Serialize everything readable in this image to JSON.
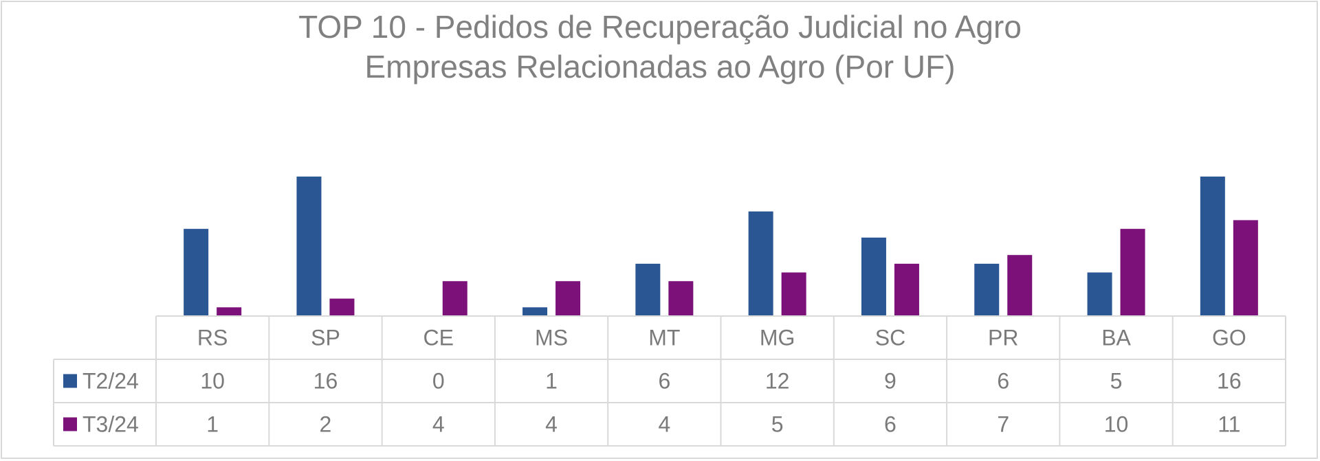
{
  "chart_data": {
    "type": "bar",
    "title": "TOP 10 - Pedidos de Recuperação Judicial no Agro",
    "subtitle": "Empresas Relacionadas ao Agro (Por UF)",
    "categories": [
      "RS",
      "SP",
      "CE",
      "MS",
      "MT",
      "MG",
      "SC",
      "PR",
      "BA",
      "GO"
    ],
    "series": [
      {
        "name": "T2/24",
        "color": "#2b5694",
        "values": [
          10,
          16,
          0,
          1,
          6,
          12,
          9,
          6,
          5,
          16
        ]
      },
      {
        "name": "T3/24",
        "color": "#7b1179",
        "values": [
          1,
          2,
          4,
          4,
          4,
          5,
          6,
          7,
          10,
          11
        ]
      }
    ],
    "ylim": [
      0,
      16
    ],
    "legend": "data-table",
    "grid": false
  }
}
